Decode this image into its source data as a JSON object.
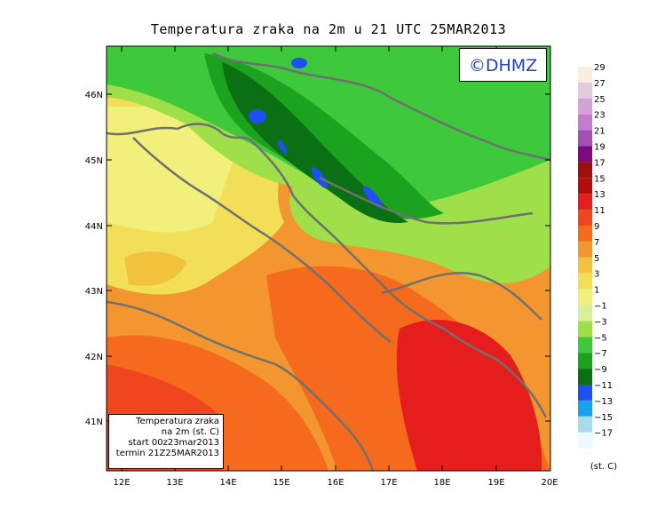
{
  "title": "Temperatura zraka na 2m u 21 UTC 25MAR2013",
  "logo_text": "©DHMZ",
  "info_box": {
    "line1": "Temperatura zraka",
    "line2": "na 2m (st. C)",
    "line3": "start 00z23mar2013",
    "line4": "termin 21Z25MAR2013"
  },
  "lat_labels": [
    "46N",
    "45N",
    "44N",
    "43N",
    "42N",
    "41N"
  ],
  "lon_labels": [
    "12E",
    "13E",
    "14E",
    "15E",
    "16E",
    "17E",
    "18E",
    "19E",
    "20E"
  ],
  "legend": {
    "unit": "(st. C)",
    "labels": [
      "29",
      "27",
      "25",
      "23",
      "21",
      "19",
      "17",
      "15",
      "13",
      "11",
      "9",
      "7",
      "5",
      "3",
      "1",
      "−1",
      "−3",
      "−5",
      "−7",
      "−9",
      "−11",
      "−13",
      "−15",
      "−17"
    ],
    "colors": [
      "#fbeee0",
      "#e4c9e1",
      "#d6a2d6",
      "#c47ccf",
      "#a34fb4",
      "#7f0a7f",
      "#9b1010",
      "#b40c0c",
      "#e61d1d",
      "#f0461f",
      "#f66a1e",
      "#f3962f",
      "#f1c23c",
      "#f3df57",
      "#f1f07a",
      "#d8ef9c",
      "#9fe04a",
      "#3ec83b",
      "#1ba31f",
      "#0b6f14",
      "#1f4ff4",
      "#18a2ed",
      "#a8dcea",
      "#e9fbff"
    ]
  }
}
